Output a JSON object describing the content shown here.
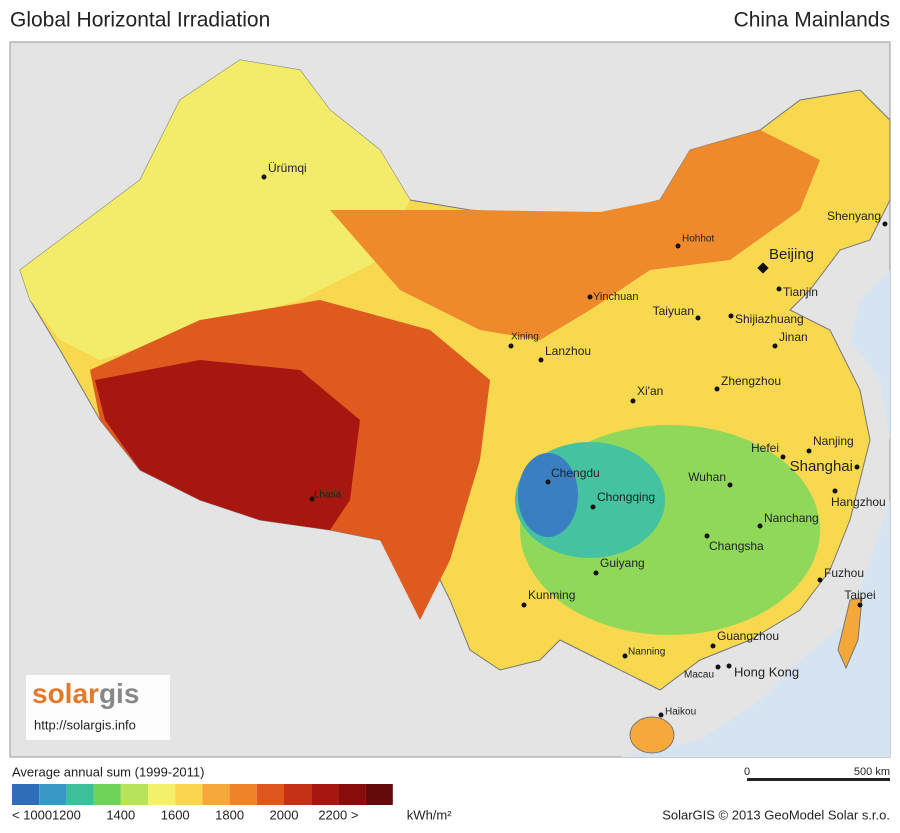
{
  "header": {
    "title": "Global Horizontal Irradiation",
    "region": "China Mainlands"
  },
  "cities": [
    "Ürümqi",
    "Hohhot",
    "Beijing",
    "Tianjin",
    "Shenyang",
    "Yinchuan",
    "Taiyuan",
    "Shijiazhuang",
    "Jinan",
    "Xining",
    "Lanzhou",
    "Xi'an",
    "Zhengzhou",
    "Hefei",
    "Nanjing",
    "Shanghai",
    "Hangzhou",
    "Chengdu",
    "Chongqing",
    "Wuhan",
    "Nanchang",
    "Changsha",
    "Lhasa",
    "Guiyang",
    "Kunming",
    "Fuzhou",
    "Taipei",
    "Nanning",
    "Guangzhou",
    "Macau",
    "Hong Kong",
    "Haikou"
  ],
  "logo": {
    "part1": "solar",
    "part2": "gis",
    "url": "http://solargis.info"
  },
  "legend": {
    "title": "Average annual sum (1999-2011)",
    "colors": [
      "#2f6db8",
      "#3a98c6",
      "#3dbf9a",
      "#6fd35a",
      "#b6e35a",
      "#f5f06a",
      "#fbd54f",
      "#f6a83a",
      "#ee8429",
      "#df561e",
      "#c33215",
      "#a8170f",
      "#880c0c",
      "#650a0a"
    ],
    "labels": [
      "< 1000",
      "1200",
      "1400",
      "1600",
      "1800",
      "2000",
      "2200 >"
    ],
    "unit": "kWh/m²"
  },
  "scale": {
    "start": "0",
    "end": "500 km"
  },
  "footer": {
    "copyright": "SolarGIS © 2013 GeoModel Solar s.r.o."
  }
}
